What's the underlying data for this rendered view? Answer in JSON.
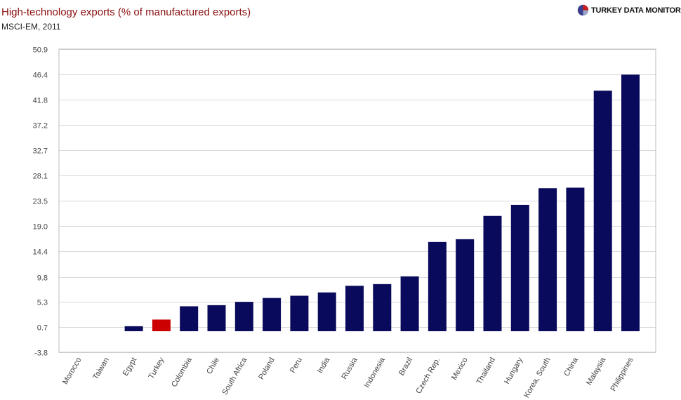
{
  "header": {
    "title": "High-technology exports (% of manufactured exports)",
    "subtitle": "MSCI-EM, 2011",
    "brand": "TURKEY DATA MONITOR",
    "brand_icon": "globe-logo-icon"
  },
  "colors": {
    "default_bar": "#0a0a5c",
    "highlight_bar": "#cc0000",
    "title": "#8b0f0f",
    "grid": "#d8d8d8"
  },
  "chart_data": {
    "type": "bar",
    "title": "High-technology exports (% of manufactured exports)",
    "subtitle": "MSCI-EM, 2011",
    "xlabel": "",
    "ylabel": "",
    "ylim": [
      -3.8,
      50.9
    ],
    "yticks": [
      "50.9",
      "46.4",
      "41.8",
      "37.2",
      "32.7",
      "28.1",
      "23.5",
      "19.0",
      "14.4",
      "9.8",
      "5.3",
      "0.7",
      "-3.8"
    ],
    "grid": true,
    "legend": "none",
    "highlight": "Turkey",
    "categories": [
      "Morocco",
      "Taiwan",
      "Egypt",
      "Turkey",
      "Colombia",
      "Chile",
      "South Africa",
      "Poland",
      "Peru",
      "India",
      "Russia",
      "Indonesia",
      "Brazil",
      "Czech Rep.",
      "Mexico",
      "Thailand",
      "Hungary",
      "Korea, South",
      "China",
      "Malaysia",
      "Philippines"
    ],
    "values": [
      0,
      0,
      0.9,
      2.1,
      4.5,
      4.7,
      5.3,
      6.0,
      6.4,
      7.0,
      8.2,
      8.5,
      9.9,
      16.1,
      16.6,
      20.8,
      22.8,
      25.8,
      25.9,
      43.4,
      46.3
    ]
  }
}
